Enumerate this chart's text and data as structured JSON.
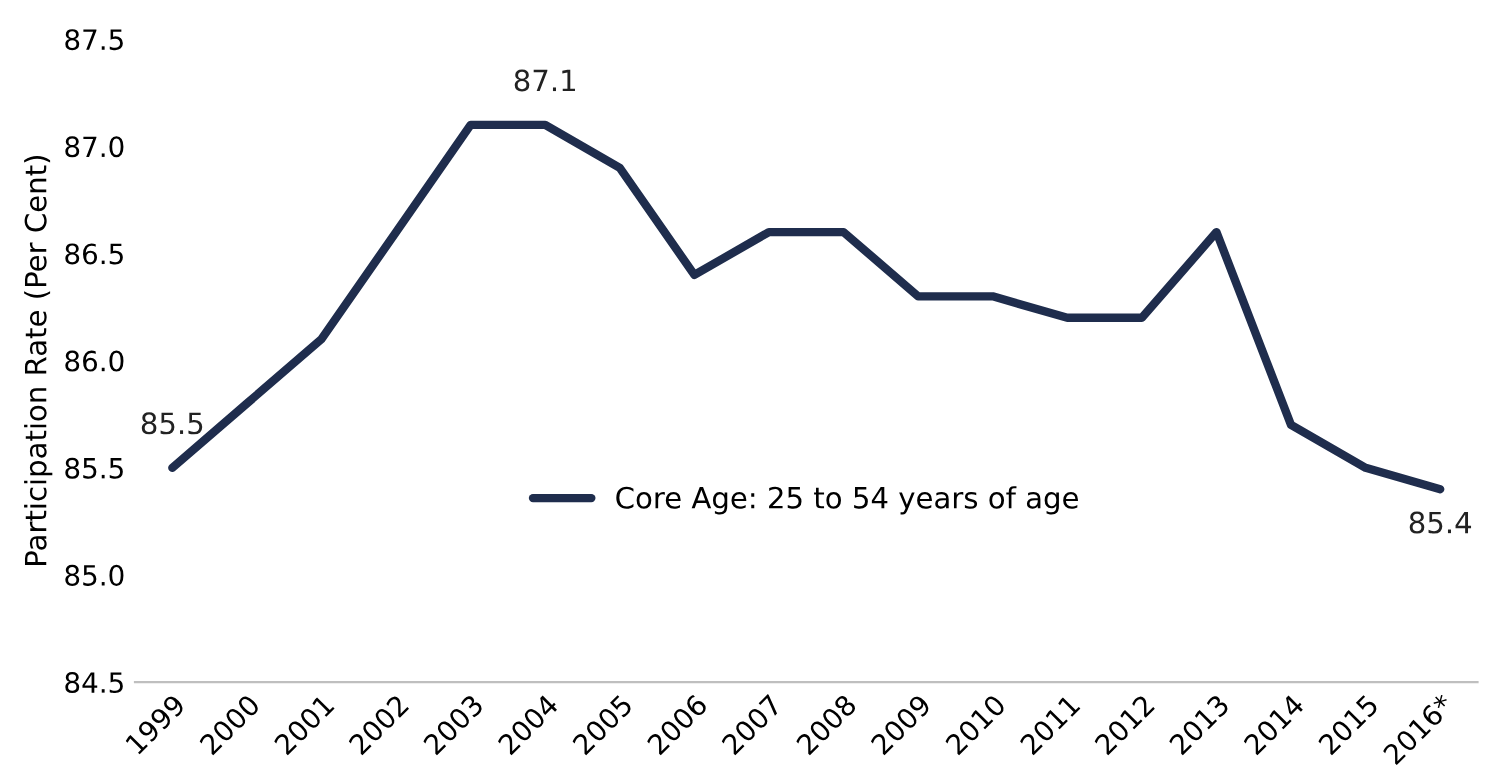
{
  "chart_data": {
    "type": "line",
    "ylabel": "Participation Rate (Per Cent)",
    "categories": [
      "1999",
      "2000",
      "2001",
      "2002",
      "2003",
      "2004",
      "2005",
      "2006",
      "2007",
      "2008",
      "2009",
      "2010",
      "2011",
      "2012",
      "2013",
      "2014",
      "2015",
      "2016*"
    ],
    "series": [
      {
        "name": "Core Age: 25 to 54 years of age",
        "color": "#1f2d4d",
        "values": [
          85.5,
          85.8,
          86.1,
          86.6,
          87.1,
          87.1,
          86.9,
          86.4,
          86.6,
          86.6,
          86.3,
          86.3,
          86.2,
          86.2,
          86.6,
          85.7,
          85.5,
          85.4
        ],
        "value_labels": [
          "85.5",
          null,
          null,
          null,
          null,
          "87.1",
          null,
          null,
          null,
          null,
          null,
          null,
          null,
          null,
          null,
          null,
          null,
          "85.4"
        ]
      }
    ],
    "ylim": [
      84.5,
      87.5
    ],
    "yticks": [
      84.5,
      {
        "value": 85,
        "label": "85.0"
      },
      85.5,
      {
        "value": 86,
        "label": "86.0"
      },
      86.5,
      {
        "value": 87,
        "label": "87.0"
      },
      87.5
    ],
    "grid": false,
    "legend": "bottom",
    "marker": "none",
    "line_style": "solid"
  }
}
